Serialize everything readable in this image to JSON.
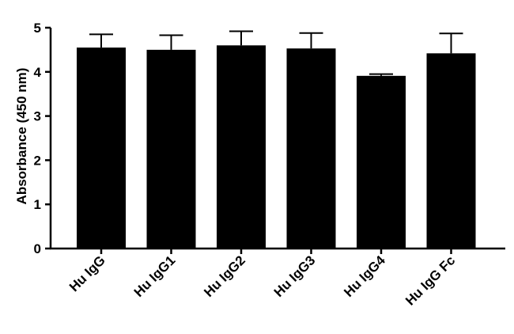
{
  "chart_data": {
    "type": "bar",
    "title": "",
    "xlabel": "",
    "ylabel": "Absorbance (450 nm)",
    "ylim": [
      0,
      5
    ],
    "yticks": [
      0,
      1,
      2,
      3,
      4,
      5
    ],
    "ytick_labels": [
      "0",
      "1",
      "2",
      "3",
      "4",
      "5"
    ],
    "categories": [
      "Hu IgG",
      "Hu IgG1",
      "Hu IgG2",
      "Hu IgG3",
      "Hu IgG4",
      "Hu IgG Fc"
    ],
    "values": [
      4.55,
      4.5,
      4.6,
      4.53,
      3.91,
      4.42
    ],
    "errors": [
      0.3,
      0.33,
      0.32,
      0.35,
      0.04,
      0.45
    ],
    "bar_color": "#000000",
    "error_bars": "upper",
    "grid": false,
    "legend": "none"
  }
}
